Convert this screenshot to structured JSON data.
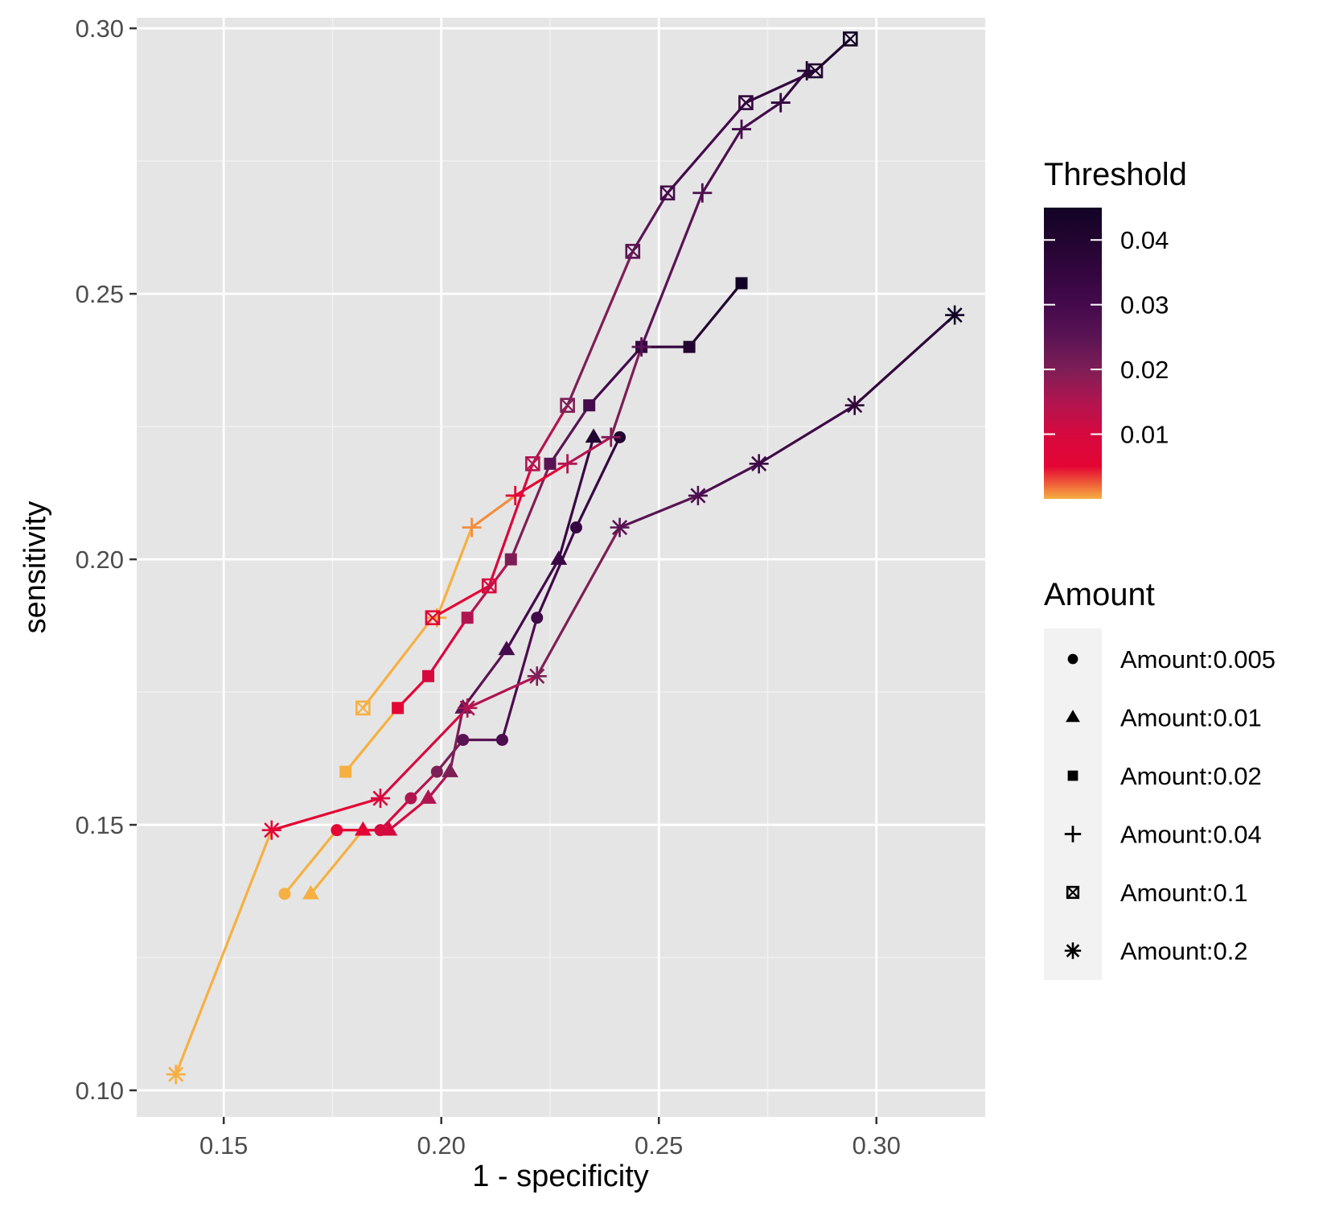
{
  "chart_data": {
    "type": "line",
    "xlabel": "1 - specificity",
    "ylabel": "sensitivity",
    "xlim": [
      0.13,
      0.325
    ],
    "ylim": [
      0.095,
      0.302
    ],
    "x_ticks": [
      0.15,
      0.2,
      0.25,
      0.3
    ],
    "x_tick_labels": [
      "0.15",
      "0.20",
      "0.25",
      "0.30"
    ],
    "y_ticks": [
      0.1,
      0.15,
      0.2,
      0.25,
      0.3
    ],
    "y_tick_labels": [
      "0.10",
      "0.15",
      "0.20",
      "0.25",
      "0.30"
    ],
    "grid": true,
    "background": "#e5e5e5",
    "color_legend": {
      "title": "Threshold",
      "range": [
        0,
        0.045
      ],
      "ticks": [
        0.01,
        0.02,
        0.03,
        0.04
      ],
      "tick_labels": [
        "0.01",
        "0.02",
        "0.03",
        "0.04"
      ],
      "placement": "right",
      "stops": [
        {
          "v": 0.0,
          "color": "#f6b042"
        },
        {
          "v": 0.002,
          "color": "#f06a3a"
        },
        {
          "v": 0.005,
          "color": "#e40534"
        },
        {
          "v": 0.01,
          "color": "#d6093f"
        },
        {
          "v": 0.015,
          "color": "#b11550"
        },
        {
          "v": 0.02,
          "color": "#7e1e56"
        },
        {
          "v": 0.025,
          "color": "#5a1454"
        },
        {
          "v": 0.03,
          "color": "#440a4c"
        },
        {
          "v": 0.035,
          "color": "#33063f"
        },
        {
          "v": 0.04,
          "color": "#220530"
        },
        {
          "v": 0.045,
          "color": "#120426"
        }
      ]
    },
    "shape_legend": {
      "title": "Amount",
      "placement": "right",
      "items": [
        {
          "label": "Amount:0.005",
          "shape": "circle"
        },
        {
          "label": "Amount:0.01",
          "shape": "triangle"
        },
        {
          "label": "Amount:0.02",
          "shape": "square"
        },
        {
          "label": "Amount:0.04",
          "shape": "plus"
        },
        {
          "label": "Amount:0.1",
          "shape": "boxx"
        },
        {
          "label": "Amount:0.2",
          "shape": "asterisk"
        }
      ]
    },
    "series": [
      {
        "name": "Amount:0.005",
        "shape": "circle",
        "points": [
          {
            "x": 0.164,
            "y": 0.137,
            "t": 0.0
          },
          {
            "x": 0.176,
            "y": 0.149,
            "t": 0.005
          },
          {
            "x": 0.186,
            "y": 0.149,
            "t": 0.01
          },
          {
            "x": 0.193,
            "y": 0.155,
            "t": 0.015
          },
          {
            "x": 0.199,
            "y": 0.16,
            "t": 0.02
          },
          {
            "x": 0.205,
            "y": 0.166,
            "t": 0.025
          },
          {
            "x": 0.214,
            "y": 0.166,
            "t": 0.028
          },
          {
            "x": 0.222,
            "y": 0.189,
            "t": 0.031
          },
          {
            "x": 0.231,
            "y": 0.206,
            "t": 0.034
          },
          {
            "x": 0.241,
            "y": 0.223,
            "t": 0.04
          }
        ]
      },
      {
        "name": "Amount:0.01",
        "shape": "triangle",
        "points": [
          {
            "x": 0.17,
            "y": 0.137,
            "t": 0.0
          },
          {
            "x": 0.182,
            "y": 0.149,
            "t": 0.005
          },
          {
            "x": 0.188,
            "y": 0.149,
            "t": 0.01
          },
          {
            "x": 0.197,
            "y": 0.155,
            "t": 0.015
          },
          {
            "x": 0.202,
            "y": 0.16,
            "t": 0.02
          },
          {
            "x": 0.205,
            "y": 0.172,
            "t": 0.025
          },
          {
            "x": 0.215,
            "y": 0.183,
            "t": 0.03
          },
          {
            "x": 0.227,
            "y": 0.2,
            "t": 0.033
          },
          {
            "x": 0.235,
            "y": 0.223,
            "t": 0.04
          }
        ]
      },
      {
        "name": "Amount:0.02",
        "shape": "square",
        "points": [
          {
            "x": 0.178,
            "y": 0.16,
            "t": 0.0
          },
          {
            "x": 0.19,
            "y": 0.172,
            "t": 0.005
          },
          {
            "x": 0.197,
            "y": 0.178,
            "t": 0.01
          },
          {
            "x": 0.206,
            "y": 0.189,
            "t": 0.015
          },
          {
            "x": 0.216,
            "y": 0.2,
            "t": 0.02
          },
          {
            "x": 0.225,
            "y": 0.218,
            "t": 0.025
          },
          {
            "x": 0.234,
            "y": 0.229,
            "t": 0.03
          },
          {
            "x": 0.246,
            "y": 0.24,
            "t": 0.035
          },
          {
            "x": 0.257,
            "y": 0.24,
            "t": 0.04
          },
          {
            "x": 0.269,
            "y": 0.252,
            "t": 0.045
          }
        ]
      },
      {
        "name": "Amount:0.04",
        "shape": "plus",
        "points": [
          {
            "x": 0.199,
            "y": 0.189,
            "t": 0.0
          },
          {
            "x": 0.207,
            "y": 0.206,
            "t": 0.001
          },
          {
            "x": 0.217,
            "y": 0.212,
            "t": 0.005
          },
          {
            "x": 0.229,
            "y": 0.218,
            "t": 0.015
          },
          {
            "x": 0.239,
            "y": 0.223,
            "t": 0.02
          },
          {
            "x": 0.246,
            "y": 0.24,
            "t": 0.025
          },
          {
            "x": 0.26,
            "y": 0.269,
            "t": 0.028
          },
          {
            "x": 0.269,
            "y": 0.281,
            "t": 0.03
          },
          {
            "x": 0.278,
            "y": 0.286,
            "t": 0.035
          },
          {
            "x": 0.284,
            "y": 0.292,
            "t": 0.04
          }
        ]
      },
      {
        "name": "Amount:0.1",
        "shape": "boxx",
        "points": [
          {
            "x": 0.182,
            "y": 0.172,
            "t": 0.0
          },
          {
            "x": 0.198,
            "y": 0.189,
            "t": 0.005
          },
          {
            "x": 0.211,
            "y": 0.195,
            "t": 0.01
          },
          {
            "x": 0.221,
            "y": 0.218,
            "t": 0.015
          },
          {
            "x": 0.229,
            "y": 0.229,
            "t": 0.02
          },
          {
            "x": 0.244,
            "y": 0.258,
            "t": 0.025
          },
          {
            "x": 0.252,
            "y": 0.269,
            "t": 0.03
          },
          {
            "x": 0.27,
            "y": 0.286,
            "t": 0.035
          },
          {
            "x": 0.286,
            "y": 0.292,
            "t": 0.04
          },
          {
            "x": 0.294,
            "y": 0.298,
            "t": 0.045
          }
        ]
      },
      {
        "name": "Amount:0.2",
        "shape": "asterisk",
        "points": [
          {
            "x": 0.139,
            "y": 0.103,
            "t": 0.0
          },
          {
            "x": 0.161,
            "y": 0.149,
            "t": 0.005
          },
          {
            "x": 0.186,
            "y": 0.155,
            "t": 0.01
          },
          {
            "x": 0.206,
            "y": 0.172,
            "t": 0.015
          },
          {
            "x": 0.222,
            "y": 0.178,
            "t": 0.02
          },
          {
            "x": 0.241,
            "y": 0.206,
            "t": 0.025
          },
          {
            "x": 0.259,
            "y": 0.212,
            "t": 0.028
          },
          {
            "x": 0.273,
            "y": 0.218,
            "t": 0.032
          },
          {
            "x": 0.295,
            "y": 0.229,
            "t": 0.036
          },
          {
            "x": 0.318,
            "y": 0.246,
            "t": 0.045
          }
        ]
      }
    ]
  }
}
